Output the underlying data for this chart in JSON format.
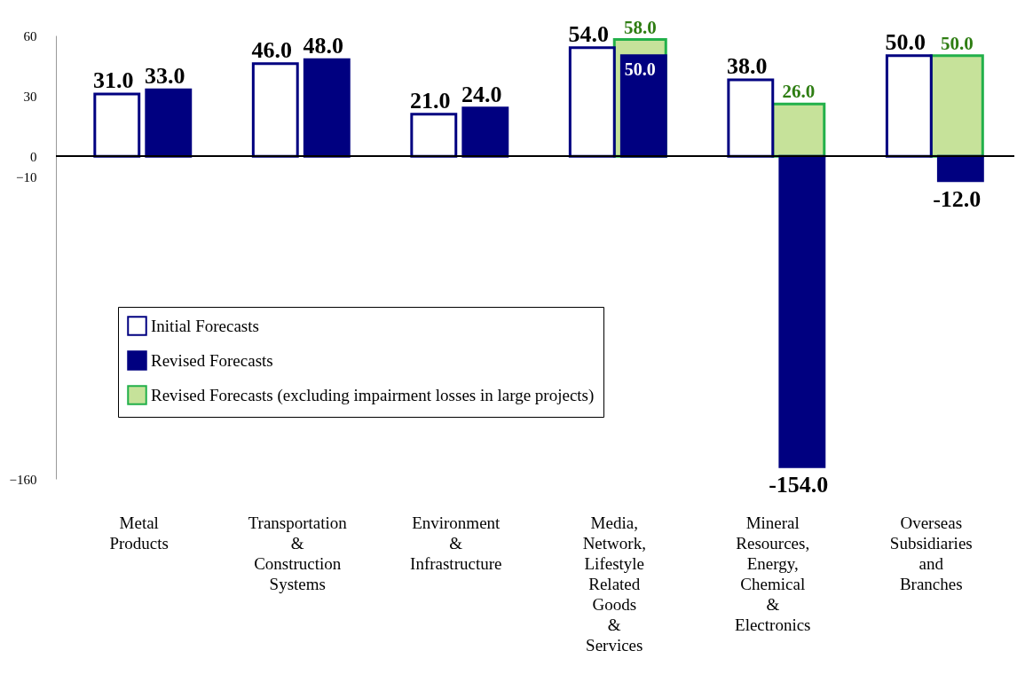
{
  "chart_data": {
    "type": "bar",
    "categories": [
      "Metal Products",
      "Transportation & Construction Systems",
      "Environment & Infrastructure",
      "Media, Network, Lifestyle Related Goods & Services",
      "Mineral Resources, Energy, Chemical & Electronics",
      "Overseas Subsidiaries and Branches"
    ],
    "series": [
      {
        "name": "Initial Forecasts",
        "color": "#ffffff",
        "values": [
          31,
          46,
          21,
          54,
          38,
          50
        ],
        "value_labels": [
          "31.0",
          "46.0",
          "21.0",
          "54.0",
          "38.0",
          "50.0"
        ]
      },
      {
        "name": "Revised Forecasts",
        "color": "#000080",
        "values": [
          33,
          48,
          24,
          50,
          -154,
          -12
        ],
        "value_labels": [
          "33.0",
          "48.0",
          "24.0",
          "50.0",
          "-154.0",
          "-12.0"
        ]
      },
      {
        "name": "Revised Forecasts (excluding impairment losses in large projects)",
        "color": "#c6e29a",
        "values": [
          null,
          null,
          null,
          58,
          26,
          50
        ],
        "value_labels": [
          null,
          null,
          null,
          "58.0",
          "26.0",
          "50.0"
        ]
      }
    ],
    "ref_lines": [
      {
        "axis": "y",
        "value": 0,
        "color": "#000000"
      }
    ],
    "ylim": [
      -160,
      60
    ],
    "yticks": [
      60,
      30,
      0,
      -10,
      -160
    ],
    "grid": false,
    "legend": "bottom left"
  }
}
